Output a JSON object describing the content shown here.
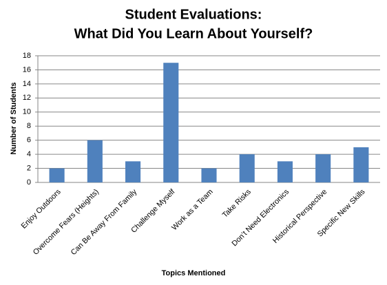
{
  "chart_data": {
    "type": "bar",
    "title": [
      "Student Evaluations:",
      "What Did You Learn About Yourself?"
    ],
    "x_label": "Topics  Mentioned",
    "y_label": "Number of Students",
    "categories": [
      "Enjoy Outdoors",
      "Overcome Fears (Heights)",
      "Can Be Away From Family",
      "Challenge Myself",
      "Work as a Team",
      "Take Risks",
      "Don’t Need Electronics",
      "Historical Perspective",
      "Specific New Skills"
    ],
    "values": [
      2,
      6,
      3,
      17,
      2,
      4,
      3,
      4,
      5
    ],
    "color": "#4f81bd",
    "ylim": [
      0,
      18
    ],
    "yticks": [
      0,
      2,
      4,
      6,
      8,
      10,
      12,
      14,
      16,
      18
    ],
    "grid": true
  }
}
